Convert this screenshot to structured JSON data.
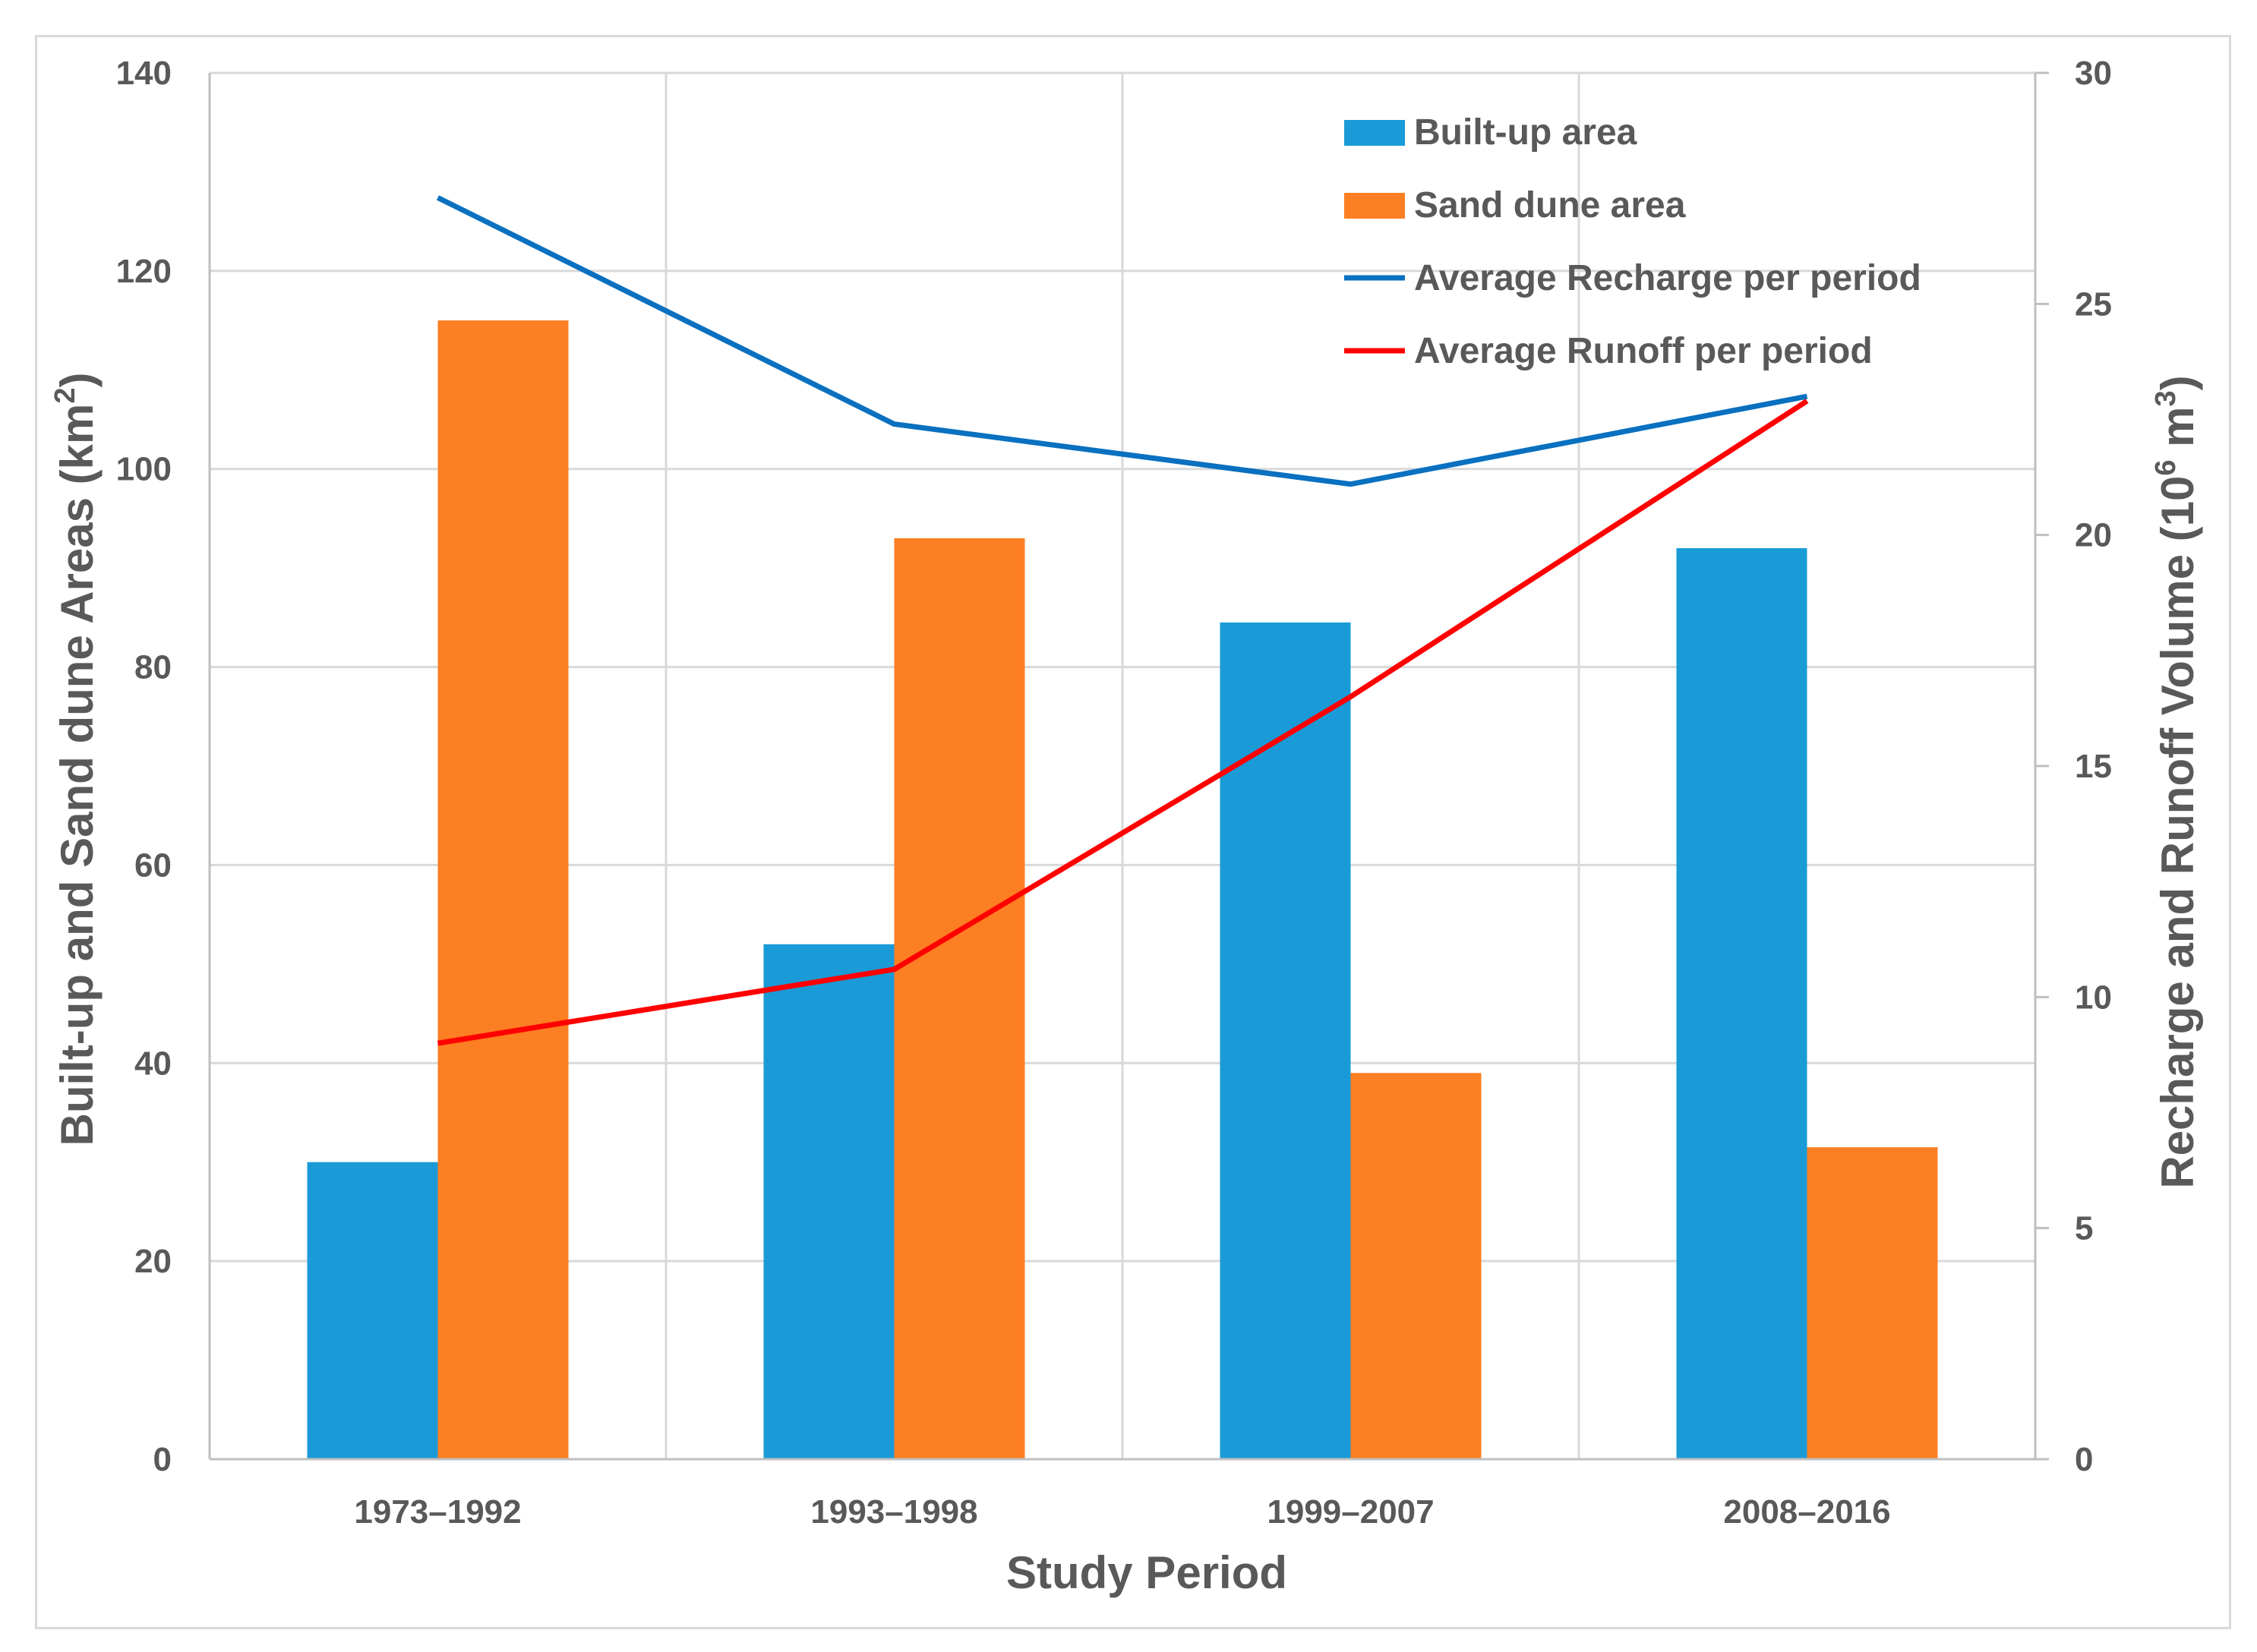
{
  "chart_data": {
    "type": "bar",
    "categories": [
      "1973–1992",
      "1993–1998",
      "1999–2007",
      "2008–2016"
    ],
    "series": [
      {
        "name": "Built-up area",
        "type": "bar",
        "axis": "left",
        "color": "#1a9bd7",
        "values": [
          30,
          52,
          84.5,
          92
        ]
      },
      {
        "name": "Sand dune area",
        "type": "bar",
        "axis": "left",
        "color": "#fd7f23",
        "values": [
          115,
          93,
          39,
          31.5
        ]
      },
      {
        "name": "Average Recharge per period",
        "type": "line",
        "axis": "right",
        "color": "#0a70c0",
        "values": [
          27.3,
          22.4,
          21.1,
          23.0
        ]
      },
      {
        "name": "Average Runoff per period",
        "type": "line",
        "axis": "right",
        "color": "#ff0000",
        "values": [
          9.0,
          10.6,
          16.5,
          22.9
        ]
      }
    ],
    "xlabel": "Study Period",
    "ylabel": "Built-up and Sand dune Areas (km",
    "ylabel_sup": "2",
    "ylabel_end": ")",
    "y2label": "Recharge and Runoff Volume (10",
    "y2label_sup": "6",
    "y2label_mid": " m",
    "y2label_sup2": "3",
    "y2label_end": ")",
    "ylim": [
      0,
      140
    ],
    "yticks": [
      0,
      20,
      40,
      60,
      80,
      100,
      120,
      140
    ],
    "y2lim": [
      0,
      30
    ],
    "y2ticks": [
      0,
      5,
      10,
      15,
      20,
      25,
      30
    ],
    "grid": true,
    "legend_position": "top-right"
  }
}
